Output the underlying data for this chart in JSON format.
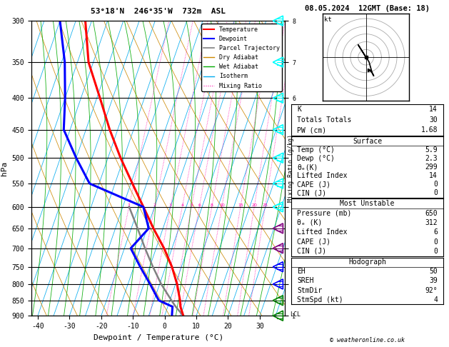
{
  "title_left": "53°18'N  246°35'W  732m  ASL",
  "title_right": "08.05.2024  12GMT (Base: 18)",
  "xlabel": "Dewpoint / Temperature (°C)",
  "ylabel_left": "hPa",
  "pressure_levels": [
    300,
    350,
    400,
    450,
    500,
    550,
    600,
    650,
    700,
    750,
    800,
    850,
    900
  ],
  "temp_range": [
    -42,
    38
  ],
  "temp_ticks": [
    -40,
    -30,
    -20,
    -10,
    0,
    10,
    20,
    30
  ],
  "km_ticks": [
    1,
    2,
    3,
    4,
    5,
    6,
    7,
    8
  ],
  "km_pressures": [
    900,
    800,
    700,
    600,
    500,
    400,
    350,
    300
  ],
  "lcl_pressure": 895,
  "mixing_ratio_lines": [
    1,
    2,
    3,
    4,
    5,
    6,
    8,
    10,
    15,
    20,
    25
  ],
  "skew_factor": 32.0,
  "temp_profile": {
    "pressure": [
      900,
      870,
      850,
      800,
      750,
      700,
      650,
      600,
      550,
      500,
      450,
      400,
      350,
      300
    ],
    "temp": [
      5.9,
      4.0,
      3.2,
      0.5,
      -3.0,
      -7.5,
      -13.0,
      -18.5,
      -24.5,
      -31.0,
      -37.5,
      -44.0,
      -51.5,
      -57.0
    ]
  },
  "dewpoint_profile": {
    "pressure": [
      900,
      870,
      850,
      800,
      750,
      700,
      650,
      600,
      550,
      500,
      450,
      400,
      350,
      300
    ],
    "dewpoint": [
      2.3,
      1.5,
      -3.5,
      -8.0,
      -13.0,
      -18.0,
      -14.5,
      -18.5,
      -38.0,
      -45.0,
      -52.0,
      -55.0,
      -59.0,
      -65.0
    ]
  },
  "parcel_trajectory": {
    "pressure": [
      900,
      870,
      850,
      800,
      750,
      700,
      650,
      600
    ],
    "temp": [
      5.9,
      2.5,
      0.5,
      -4.5,
      -9.0,
      -13.5,
      -18.0,
      -23.0
    ]
  },
  "colors": {
    "temperature": "#ff0000",
    "dewpoint": "#0000ff",
    "parcel": "#808080",
    "dry_adiabat": "#cc8800",
    "wet_adiabat": "#00aa00",
    "isotherm": "#00aaee",
    "mixing_ratio": "#ff00aa",
    "background": "#ffffff",
    "grid": "#000000"
  },
  "hodograph_data": {
    "u_kt": [
      0,
      -5,
      2,
      4,
      5,
      4,
      2
    ],
    "v_kt": [
      0,
      8,
      -3,
      -10,
      -12,
      -10,
      -8
    ]
  },
  "sounding_info": {
    "K": 14,
    "Totals_Totals": 30,
    "PW_cm": 1.68,
    "Surface_Temp": 5.9,
    "Surface_Dewp": 2.3,
    "Surface_theta_e": 299,
    "Surface_Lifted_Index": 14,
    "Surface_CAPE": 0,
    "Surface_CIN": 0,
    "MU_Pressure": 650,
    "MU_theta_e": 312,
    "MU_Lifted_Index": 6,
    "MU_CAPE": 0,
    "MU_CIN": 0,
    "EH": 50,
    "SREH": 39,
    "StmDir": "92°",
    "StmSpd_kt": 4
  },
  "wind_barb_pressures": [
    300,
    350,
    400,
    450,
    500,
    550,
    600,
    650,
    700,
    750,
    800,
    850,
    900
  ],
  "wind_barb_colors": [
    "cyan",
    "cyan",
    "cyan",
    "cyan",
    "cyan",
    "cyan",
    "cyan",
    "purple",
    "purple",
    "blue",
    "blue",
    "green",
    "green"
  ],
  "wind_barb_dot_colors": [
    "cyan",
    "cyan",
    "cyan",
    "cyan",
    "cyan",
    "cyan",
    "cyan",
    "purple",
    "blue",
    "blue",
    "blue",
    "green",
    "green"
  ]
}
